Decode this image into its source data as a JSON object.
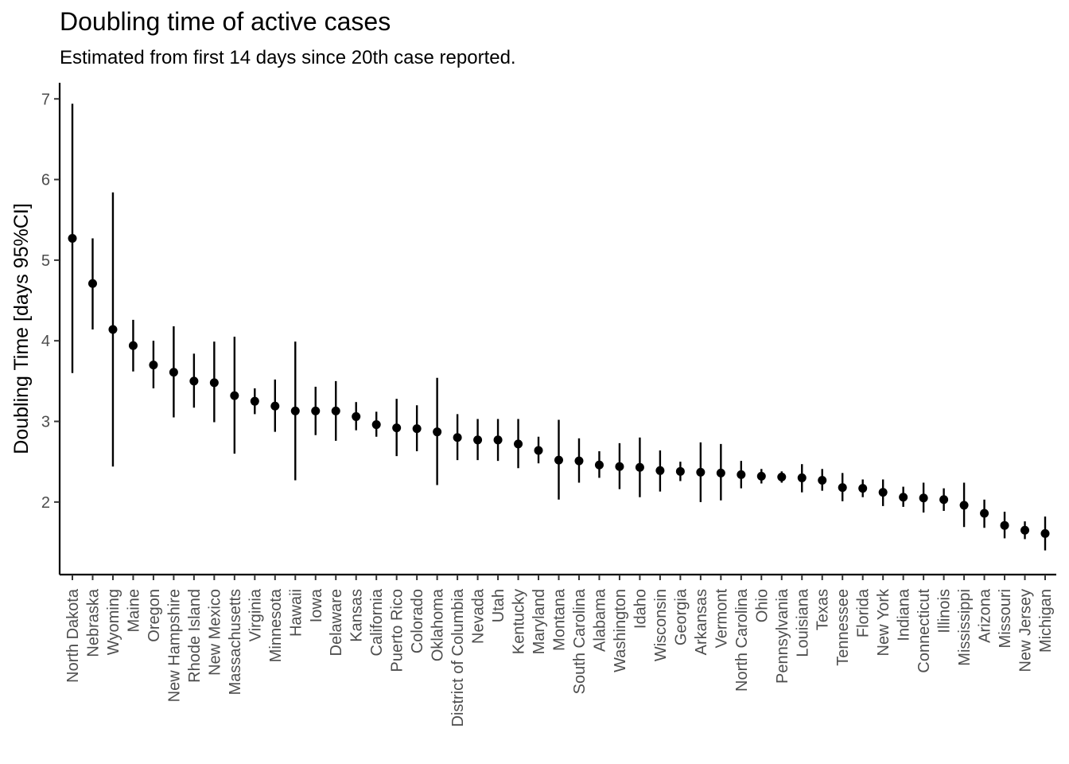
{
  "chart_data": {
    "type": "scatter",
    "title": "Doubling time of active cases",
    "subtitle": "Estimated from first 14 days since 20th case reported.",
    "xlabel": "",
    "ylabel": "Doubling Time [days 95%CI]",
    "ylim": [
      1.1,
      7.2
    ],
    "yticks": [
      2,
      3,
      4,
      5,
      6,
      7
    ],
    "grid": false,
    "error_bars": true,
    "point_color": "#000000",
    "line_color": "#000000",
    "points": [
      {
        "state": "North Dakota",
        "value": 5.27,
        "lower": 3.6,
        "upper": 6.94
      },
      {
        "state": "Nebraska",
        "value": 4.71,
        "lower": 4.14,
        "upper": 5.27
      },
      {
        "state": "Wyoming",
        "value": 4.14,
        "lower": 2.44,
        "upper": 5.84
      },
      {
        "state": "Maine",
        "value": 3.94,
        "lower": 3.62,
        "upper": 4.26
      },
      {
        "state": "Oregon",
        "value": 3.7,
        "lower": 3.41,
        "upper": 4.0
      },
      {
        "state": "New Hampshire",
        "value": 3.61,
        "lower": 3.05,
        "upper": 4.18
      },
      {
        "state": "Rhode Island",
        "value": 3.5,
        "lower": 3.17,
        "upper": 3.84
      },
      {
        "state": "New Mexico",
        "value": 3.48,
        "lower": 2.99,
        "upper": 3.99
      },
      {
        "state": "Massachusetts",
        "value": 3.32,
        "lower": 2.6,
        "upper": 4.05
      },
      {
        "state": "Virginia",
        "value": 3.25,
        "lower": 3.09,
        "upper": 3.41
      },
      {
        "state": "Minnesota",
        "value": 3.19,
        "lower": 2.87,
        "upper": 3.52
      },
      {
        "state": "Hawaii",
        "value": 3.13,
        "lower": 2.27,
        "upper": 3.99
      },
      {
        "state": "Iowa",
        "value": 3.13,
        "lower": 2.83,
        "upper": 3.43
      },
      {
        "state": "Delaware",
        "value": 3.13,
        "lower": 2.76,
        "upper": 3.5
      },
      {
        "state": "Kansas",
        "value": 3.06,
        "lower": 2.89,
        "upper": 3.24
      },
      {
        "state": "California",
        "value": 2.96,
        "lower": 2.81,
        "upper": 3.12
      },
      {
        "state": "Puerto Rico",
        "value": 2.92,
        "lower": 2.57,
        "upper": 3.28
      },
      {
        "state": "Colorado",
        "value": 2.91,
        "lower": 2.63,
        "upper": 3.2
      },
      {
        "state": "Oklahoma",
        "value": 2.87,
        "lower": 2.21,
        "upper": 3.54
      },
      {
        "state": "District of Columbia",
        "value": 2.8,
        "lower": 2.52,
        "upper": 3.09
      },
      {
        "state": "Nevada",
        "value": 2.77,
        "lower": 2.52,
        "upper": 3.03
      },
      {
        "state": "Utah",
        "value": 2.77,
        "lower": 2.51,
        "upper": 3.03
      },
      {
        "state": "Kentucky",
        "value": 2.72,
        "lower": 2.42,
        "upper": 3.03
      },
      {
        "state": "Maryland",
        "value": 2.64,
        "lower": 2.48,
        "upper": 2.81
      },
      {
        "state": "Montana",
        "value": 2.52,
        "lower": 2.03,
        "upper": 3.02
      },
      {
        "state": "South Carolina",
        "value": 2.51,
        "lower": 2.24,
        "upper": 2.79
      },
      {
        "state": "Alabama",
        "value": 2.46,
        "lower": 2.3,
        "upper": 2.63
      },
      {
        "state": "Washington",
        "value": 2.44,
        "lower": 2.16,
        "upper": 2.73
      },
      {
        "state": "Idaho",
        "value": 2.43,
        "lower": 2.06,
        "upper": 2.8
      },
      {
        "state": "Wisconsin",
        "value": 2.39,
        "lower": 2.13,
        "upper": 2.64
      },
      {
        "state": "Georgia",
        "value": 2.38,
        "lower": 2.26,
        "upper": 2.5
      },
      {
        "state": "Arkansas",
        "value": 2.37,
        "lower": 2.0,
        "upper": 2.74
      },
      {
        "state": "Vermont",
        "value": 2.36,
        "lower": 2.02,
        "upper": 2.72
      },
      {
        "state": "North Carolina",
        "value": 2.34,
        "lower": 2.17,
        "upper": 2.51
      },
      {
        "state": "Ohio",
        "value": 2.32,
        "lower": 2.23,
        "upper": 2.41
      },
      {
        "state": "Pennsylvania",
        "value": 2.31,
        "lower": 2.24,
        "upper": 2.38
      },
      {
        "state": "Louisiana",
        "value": 2.3,
        "lower": 2.12,
        "upper": 2.47
      },
      {
        "state": "Texas",
        "value": 2.27,
        "lower": 2.14,
        "upper": 2.41
      },
      {
        "state": "Tennessee",
        "value": 2.18,
        "lower": 2.01,
        "upper": 2.36
      },
      {
        "state": "Florida",
        "value": 2.17,
        "lower": 2.06,
        "upper": 2.28
      },
      {
        "state": "New York",
        "value": 2.12,
        "lower": 1.95,
        "upper": 2.28
      },
      {
        "state": "Indiana",
        "value": 2.06,
        "lower": 1.94,
        "upper": 2.19
      },
      {
        "state": "Connecticut",
        "value": 2.05,
        "lower": 1.87,
        "upper": 2.24
      },
      {
        "state": "Illinois",
        "value": 2.03,
        "lower": 1.89,
        "upper": 2.17
      },
      {
        "state": "Mississippi",
        "value": 1.96,
        "lower": 1.69,
        "upper": 2.24
      },
      {
        "state": "Arizona",
        "value": 1.86,
        "lower": 1.68,
        "upper": 2.03
      },
      {
        "state": "Missouri",
        "value": 1.71,
        "lower": 1.55,
        "upper": 1.88
      },
      {
        "state": "New Jersey",
        "value": 1.65,
        "lower": 1.54,
        "upper": 1.76
      },
      {
        "state": "Michigan",
        "value": 1.61,
        "lower": 1.4,
        "upper": 1.82
      }
    ]
  }
}
